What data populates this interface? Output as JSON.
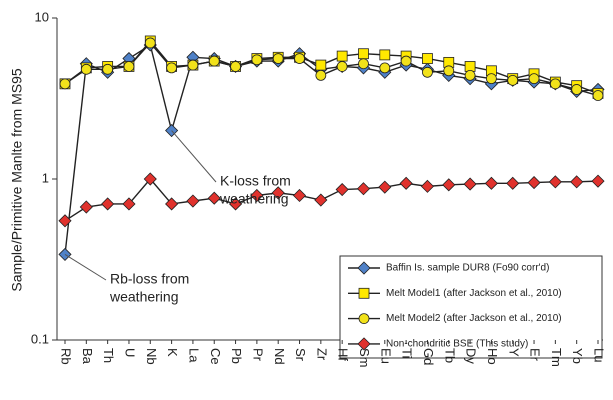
{
  "chart_data": {
    "type": "line",
    "y_label": "Sample/Primitive Manlte from MS95",
    "categories": [
      "Rb",
      "Ba",
      "Th",
      "U",
      "Nb",
      "K",
      "La",
      "Ce",
      "Pb",
      "Pr",
      "Nd",
      "Sr",
      "Zr",
      "Hf",
      "Sm",
      "Eu",
      "Ti",
      "Gd",
      "Tb",
      "Dy",
      "Ho",
      "Y",
      "Er",
      "Tm",
      "Yb",
      "Lu"
    ],
    "log_scale": true,
    "ylim": [
      0.1,
      10
    ],
    "yticks": [
      0.1,
      1,
      10
    ],
    "series": [
      {
        "name": "Baffin Is. sample DUR8 (Fo90 corr'd)",
        "color": "#4f81c7",
        "marker": "diamond",
        "values": [
          0.34,
          5.2,
          4.6,
          5.6,
          6.8,
          2.0,
          5.7,
          5.6,
          5.0,
          5.4,
          5.4,
          6.0,
          4.8,
          5.0,
          4.9,
          4.6,
          5.1,
          4.8,
          4.4,
          4.2,
          3.9,
          4.1,
          4.0,
          3.9,
          3.5,
          3.6
        ]
      },
      {
        "name": "Melt Model1 (after Jackson et al., 2010)",
        "color": "#ffe800",
        "marker": "square",
        "values": [
          3.9,
          4.9,
          5.0,
          5.0,
          7.2,
          5.0,
          5.1,
          5.4,
          5.0,
          5.6,
          5.7,
          5.7,
          5.1,
          5.8,
          6.0,
          5.9,
          5.8,
          5.6,
          5.3,
          5.0,
          4.7,
          4.2,
          4.5,
          4.0,
          3.8,
          3.4
        ]
      },
      {
        "name": "Melt Model2 (after Jackson et al., 2010)",
        "color": "#f2e21a",
        "marker": "circle",
        "values": [
          3.9,
          4.8,
          4.8,
          5.0,
          7.0,
          4.9,
          5.1,
          5.4,
          5.0,
          5.5,
          5.6,
          5.6,
          4.4,
          5.0,
          5.2,
          4.9,
          5.4,
          4.6,
          4.7,
          4.4,
          4.2,
          4.1,
          4.2,
          3.9,
          3.6,
          3.3
        ]
      },
      {
        "name": "Non-chondritic BSE (This study)",
        "color": "#e0322d",
        "marker": "diamond",
        "values": [
          0.55,
          0.67,
          0.7,
          0.7,
          1.0,
          0.7,
          0.73,
          0.76,
          0.7,
          0.79,
          0.82,
          0.79,
          0.74,
          0.86,
          0.87,
          0.89,
          0.94,
          0.9,
          0.92,
          0.93,
          0.94,
          0.94,
          0.95,
          0.96,
          0.96,
          0.97
        ]
      }
    ],
    "annotations": [
      {
        "lines": [
          "K-loss from",
          "weathering"
        ]
      },
      {
        "lines": [
          "Rb-loss from",
          "weathering"
        ]
      }
    ]
  }
}
